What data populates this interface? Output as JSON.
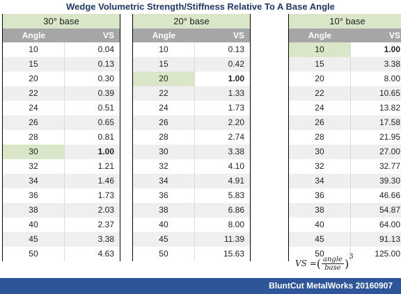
{
  "title": "Wedge Volumetric Strength/Stiffness Relative To A Base Angle",
  "col_angle": "Angle",
  "col_vs": "VS",
  "tables": [
    {
      "banner": "30° base",
      "rows": [
        [
          "10",
          "0.04"
        ],
        [
          "15",
          "0.13"
        ],
        [
          "20",
          "0.30"
        ],
        [
          "22",
          "0.39"
        ],
        [
          "24",
          "0.51"
        ],
        [
          "26",
          "0.65"
        ],
        [
          "28",
          "0.81"
        ],
        [
          "30",
          "1.00"
        ],
        [
          "32",
          "1.21"
        ],
        [
          "34",
          "1.46"
        ],
        [
          "36",
          "1.73"
        ],
        [
          "38",
          "2.03"
        ],
        [
          "40",
          "2.37"
        ],
        [
          "45",
          "3.38"
        ],
        [
          "50",
          "4.63"
        ]
      ],
      "base_index": 7
    },
    {
      "banner": "20° base",
      "rows": [
        [
          "10",
          "0.13"
        ],
        [
          "15",
          "0.42"
        ],
        [
          "20",
          "1.00"
        ],
        [
          "22",
          "1.33"
        ],
        [
          "24",
          "1.73"
        ],
        [
          "26",
          "2.20"
        ],
        [
          "28",
          "2.74"
        ],
        [
          "30",
          "3.38"
        ],
        [
          "32",
          "4.10"
        ],
        [
          "34",
          "4.91"
        ],
        [
          "36",
          "5.83"
        ],
        [
          "38",
          "6.86"
        ],
        [
          "40",
          "8.00"
        ],
        [
          "45",
          "11.39"
        ],
        [
          "50",
          "15.63"
        ]
      ],
      "base_index": 2
    },
    {
      "banner": "10° base",
      "rows": [
        [
          "10",
          "1.00"
        ],
        [
          "15",
          "3.38"
        ],
        [
          "20",
          "8.00"
        ],
        [
          "22",
          "10.65"
        ],
        [
          "24",
          "13.82"
        ],
        [
          "26",
          "17.58"
        ],
        [
          "28",
          "21.95"
        ],
        [
          "30",
          "27.00"
        ],
        [
          "32",
          "32.77"
        ],
        [
          "34",
          "39.30"
        ],
        [
          "36",
          "46.66"
        ],
        [
          "38",
          "54.87"
        ],
        [
          "40",
          "64.00"
        ],
        [
          "45",
          "91.13"
        ],
        [
          "50",
          "125.00"
        ]
      ],
      "base_index": 0
    }
  ],
  "formula": {
    "lhs": "VS = ",
    "numerator": "angle",
    "denominator": "base",
    "exponent": "3"
  },
  "footer": "BluntCut MetalWorks 20160907"
}
